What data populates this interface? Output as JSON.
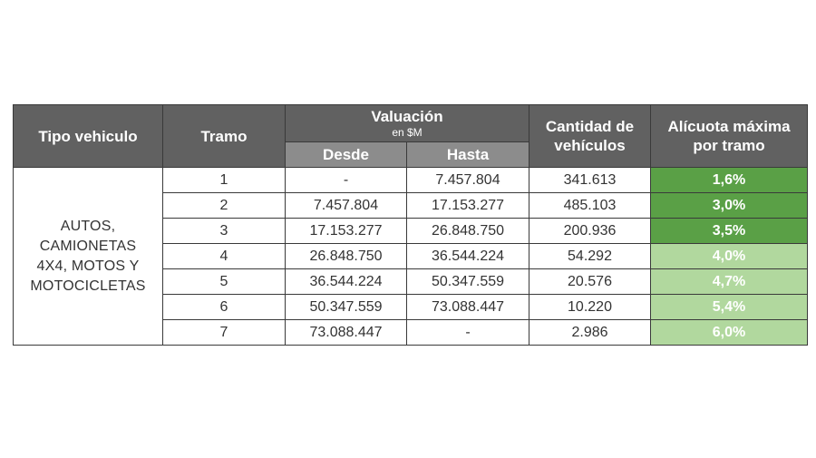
{
  "table": {
    "headers": {
      "tipo": "Tipo vehiculo",
      "tramo": "Tramo",
      "valuacion": "Valuación",
      "valuacion_unit": "en $M",
      "desde": "Desde",
      "hasta": "Hasta",
      "cantidad_line1": "Cantidad de",
      "cantidad_line2": "vehículos",
      "alicuota_line1": "Alícuota máxima",
      "alicuota_line2": "por tramo"
    },
    "tipo_vehiculo_lines": [
      "AUTOS,",
      "CAMIONETAS",
      "4X4, MOTOS Y",
      "MOTOCICLETAS"
    ],
    "rows": [
      {
        "tramo": "1",
        "desde": "-",
        "hasta": "7.457.804",
        "cantidad": "341.613",
        "alicuota": "1,6%"
      },
      {
        "tramo": "2",
        "desde": "7.457.804",
        "hasta": "17.153.277",
        "cantidad": "485.103",
        "alicuota": "3,0%"
      },
      {
        "tramo": "3",
        "desde": "17.153.277",
        "hasta": "26.848.750",
        "cantidad": "200.936",
        "alicuota": "3,5%"
      },
      {
        "tramo": "4",
        "desde": "26.848.750",
        "hasta": "36.544.224",
        "cantidad": "54.292",
        "alicuota": "4,0%"
      },
      {
        "tramo": "5",
        "desde": "36.544.224",
        "hasta": "50.347.559",
        "cantidad": "20.576",
        "alicuota": "4,7%"
      },
      {
        "tramo": "6",
        "desde": "50.347.559",
        "hasta": "73.088.447",
        "cantidad": "10.220",
        "alicuota": "5,4%"
      },
      {
        "tramo": "7",
        "desde": "73.088.447",
        "hasta": "-",
        "cantidad": "2.986",
        "alicuota": "6,0%"
      }
    ],
    "colors": {
      "header_dark": "#616161",
      "header_light": "#8c8c8c",
      "alicuota_strong": "#5aa046",
      "alicuota_soft": "#b1d89e"
    }
  }
}
